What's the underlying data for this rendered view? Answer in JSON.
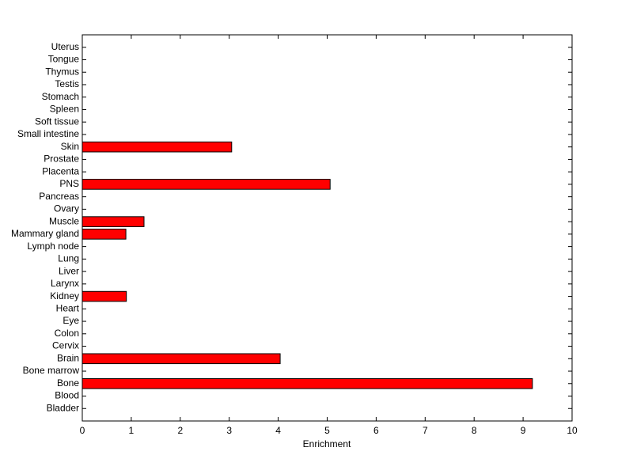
{
  "chart_data": {
    "type": "barh",
    "xlabel": "Enrichment",
    "categories": [
      "Bladder",
      "Blood",
      "Bone",
      "Bone marrow",
      "Brain",
      "Cervix",
      "Colon",
      "Eye",
      "Heart",
      "Kidney",
      "Larynx",
      "Liver",
      "Lung",
      "Lymph node",
      "Mammary gland",
      "Muscle",
      "Ovary",
      "Pancreas",
      "PNS",
      "Placenta",
      "Prostate",
      "Skin",
      "Small intestine",
      "Soft tissue",
      "Spleen",
      "Stomach",
      "Testis",
      "Thymus",
      "Tongue",
      "Uterus"
    ],
    "values": [
      0,
      0,
      9.19,
      0,
      4.04,
      0,
      0,
      0,
      0,
      0.9,
      0,
      0,
      0,
      0,
      0.89,
      1.26,
      0,
      0,
      5.06,
      0,
      0,
      3.05,
      0,
      0,
      0,
      0,
      0,
      0,
      0,
      0
    ],
    "color": "#ff0000",
    "xlim": [
      0,
      10
    ],
    "xticks": [
      0,
      1,
      2,
      3,
      4,
      5,
      6,
      7,
      8,
      9,
      10
    ],
    "grid": false
  }
}
